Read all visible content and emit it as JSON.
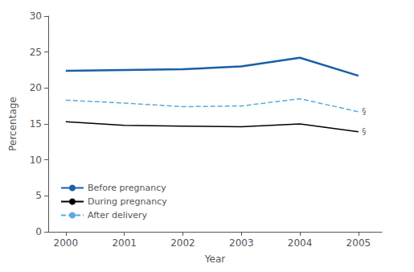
{
  "chart_data": {
    "type": "line",
    "x": [
      2000,
      2001,
      2002,
      2003,
      2004,
      2005
    ],
    "xlabel": "Year",
    "ylabel": "Percentage",
    "xlim": [
      1999.7,
      2005.4
    ],
    "xticks": [
      2000,
      2001,
      2002,
      2003,
      2004,
      2005
    ],
    "ylim": [
      0,
      30
    ],
    "yticks": [
      0,
      5,
      10,
      15,
      20,
      25,
      30
    ],
    "grid": false,
    "legend": "lower left",
    "series": [
      {
        "name": "Before pregnancy",
        "color": "#1a5fa8",
        "line_style": "solid",
        "values": [
          22.4,
          22.5,
          22.6,
          23.0,
          24.2,
          21.7
        ]
      },
      {
        "name": "During pregnancy",
        "color": "#000000",
        "line_style": "solid",
        "values": [
          15.3,
          14.8,
          14.7,
          14.6,
          15.0,
          13.9
        ]
      },
      {
        "name": "After delivery",
        "color": "#5aabdf",
        "line_style": "dashed",
        "values": [
          18.3,
          17.9,
          17.4,
          17.5,
          18.5,
          16.7
        ]
      }
    ],
    "annotations": [
      {
        "text": "§",
        "x": 2005,
        "y": 16.7
      },
      {
        "text": "§",
        "x": 2005,
        "y": 13.9
      }
    ]
  }
}
